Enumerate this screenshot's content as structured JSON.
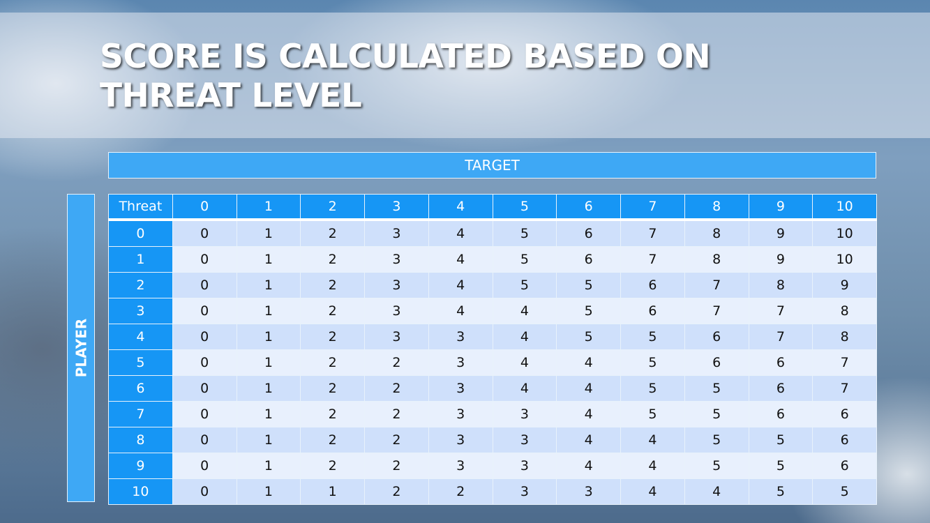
{
  "slide": {
    "title": "SCORE IS CALCULATED BASED ON THREAT LEVEL",
    "target_label": "TARGET",
    "player_label": "PLAYER"
  },
  "table": {
    "corner_header": "Threat",
    "columns": [
      "0",
      "1",
      "2",
      "3",
      "4",
      "5",
      "6",
      "7",
      "8",
      "9",
      "10"
    ],
    "rows": [
      {
        "label": "0",
        "values": [
          "0",
          "1",
          "2",
          "3",
          "4",
          "5",
          "6",
          "7",
          "8",
          "9",
          "10"
        ]
      },
      {
        "label": "1",
        "values": [
          "0",
          "1",
          "2",
          "3",
          "4",
          "5",
          "6",
          "7",
          "8",
          "9",
          "10"
        ]
      },
      {
        "label": "2",
        "values": [
          "0",
          "1",
          "2",
          "3",
          "4",
          "5",
          "5",
          "6",
          "7",
          "8",
          "9"
        ]
      },
      {
        "label": "3",
        "values": [
          "0",
          "1",
          "2",
          "3",
          "4",
          "4",
          "5",
          "6",
          "7",
          "7",
          "8"
        ]
      },
      {
        "label": "4",
        "values": [
          "0",
          "1",
          "2",
          "3",
          "3",
          "4",
          "5",
          "5",
          "6",
          "7",
          "8"
        ]
      },
      {
        "label": "5",
        "values": [
          "0",
          "1",
          "2",
          "2",
          "3",
          "4",
          "4",
          "5",
          "6",
          "6",
          "7"
        ]
      },
      {
        "label": "6",
        "values": [
          "0",
          "1",
          "2",
          "2",
          "3",
          "4",
          "4",
          "5",
          "5",
          "6",
          "7"
        ]
      },
      {
        "label": "7",
        "values": [
          "0",
          "1",
          "2",
          "2",
          "3",
          "3",
          "4",
          "5",
          "5",
          "6",
          "6"
        ]
      },
      {
        "label": "8",
        "values": [
          "0",
          "1",
          "2",
          "2",
          "3",
          "3",
          "4",
          "4",
          "5",
          "5",
          "6"
        ]
      },
      {
        "label": "9",
        "values": [
          "0",
          "1",
          "2",
          "2",
          "3",
          "3",
          "4",
          "4",
          "5",
          "5",
          "6"
        ]
      },
      {
        "label": "10",
        "values": [
          "0",
          "1",
          "1",
          "2",
          "2",
          "3",
          "3",
          "4",
          "4",
          "5",
          "5"
        ]
      }
    ]
  },
  "colors": {
    "header_blue": "#1696f5",
    "label_blue": "#3ea8f5",
    "row_dark": "#cfe0fb",
    "row_light": "#e8f0fd"
  }
}
